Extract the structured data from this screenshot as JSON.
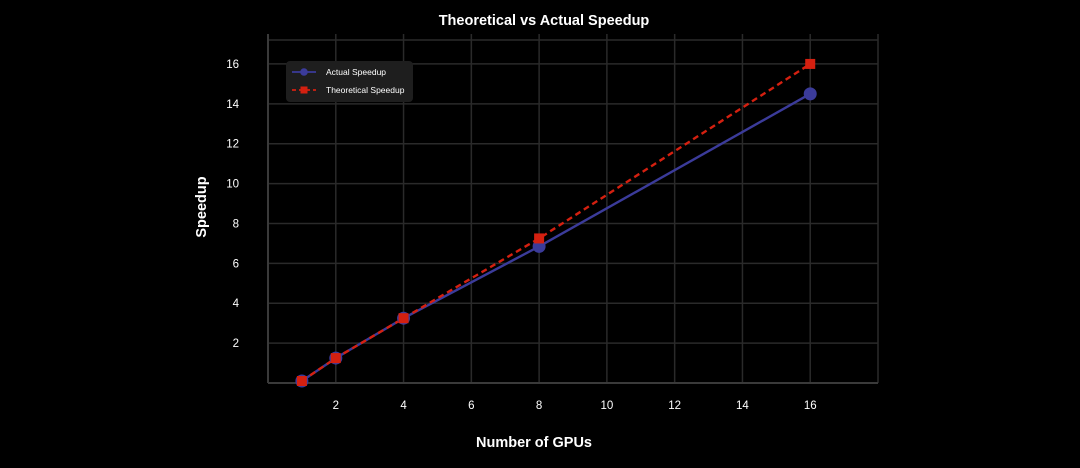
{
  "chart_data": {
    "type": "line",
    "title": "Theoretical vs Actual Speedup",
    "xlabel": "Number of GPUs",
    "ylabel": "Speedup",
    "x_ticks": [
      2,
      4,
      6,
      8,
      10,
      12,
      14,
      16
    ],
    "y_ticks": [
      2,
      4,
      6,
      8,
      10,
      12,
      14,
      16
    ],
    "xlim": [
      0,
      18
    ],
    "ylim": [
      0,
      17.2
    ],
    "grid": true,
    "legend_position": "top-left",
    "series": [
      {
        "name": "Actual Speedup",
        "x": [
          1,
          2,
          4,
          8,
          16
        ],
        "y": [
          0.1,
          1.25,
          3.25,
          6.85,
          14.5
        ],
        "color": "#3b3b9a",
        "line_style": "solid",
        "marker": "circle"
      },
      {
        "name": "Theoretical Speedup",
        "x": [
          1,
          2,
          4,
          8,
          16
        ],
        "y": [
          0.1,
          1.25,
          3.25,
          7.25,
          16
        ],
        "color": "#d42010",
        "line_style": "dashed",
        "marker": "square"
      }
    ],
    "colors": {
      "background": "#000000",
      "grid": "#2a2a2a",
      "axis": "#3a3a3a",
      "text": "#ffffff",
      "legend_bg": "#1e1e1e"
    }
  }
}
